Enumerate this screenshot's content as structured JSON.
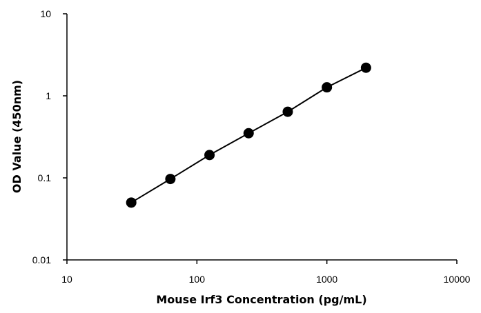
{
  "chart_data": {
    "type": "line",
    "title": "",
    "xlabel": "Mouse Irf3 Concentration (pg/mL)",
    "ylabel": "OD Value (450nm)",
    "xscale": "log",
    "yscale": "log",
    "xlim": [
      10,
      10000
    ],
    "ylim": [
      0.01,
      10
    ],
    "x_ticks": [
      10,
      100,
      1000,
      10000
    ],
    "x_tick_labels": [
      "10",
      "100",
      "1000",
      "10000"
    ],
    "y_ticks": [
      0.01,
      0.1,
      1,
      10
    ],
    "y_tick_labels": [
      "0.01",
      "0.1",
      "1",
      "10"
    ],
    "grid": false,
    "legend": "none",
    "series": [
      {
        "x": [
          31.25,
          62.5,
          125,
          250,
          500,
          1000,
          2000
        ],
        "y": [
          0.05,
          0.097,
          0.19,
          0.35,
          0.64,
          1.27,
          2.2
        ],
        "color": "#000000",
        "marker": "circle"
      }
    ]
  }
}
